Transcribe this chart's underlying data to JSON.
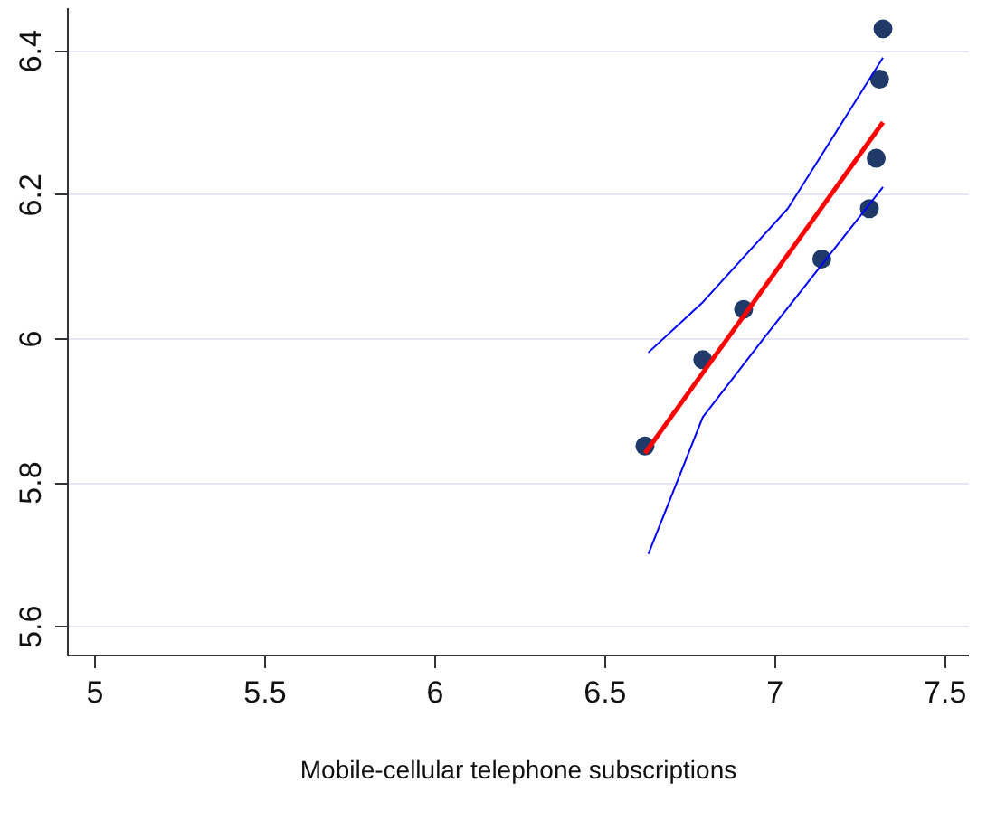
{
  "chart_data": {
    "type": "scatter",
    "xlabel": "Mobile-cellular telephone  subscriptions",
    "xlim": [
      4.92,
      7.57
    ],
    "xticks": [
      5,
      {
        "value": 5.5,
        "label": "5.5"
      },
      6,
      {
        "value": 6.5,
        "label": "6.5"
      },
      7,
      {
        "value": 7.5,
        "label": "7.5"
      }
    ],
    "ylim": [
      5.56,
      6.46
    ],
    "yticks": [
      {
        "value": 5.6,
        "label": "5.6"
      },
      {
        "value": 5.8,
        "label": "5.8"
      },
      6,
      {
        "value": 6.2,
        "label": "6.2"
      },
      {
        "value": 6.4,
        "label": "6.4"
      }
    ],
    "grid": "y",
    "series": [
      {
        "marker": "circle",
        "color": "#1f3a68",
        "x": [
          6.62,
          6.79,
          6.91,
          7.14,
          7.28,
          7.3,
          7.31,
          7.32
        ],
        "values": [
          5.85,
          5.97,
          6.04,
          6.11,
          6.18,
          6.25,
          6.36,
          6.43
        ]
      },
      {
        "type": "line",
        "color": "#ff0000",
        "x": [
          6.62,
          7.32
        ],
        "values": [
          5.84,
          6.3
        ]
      },
      {
        "type": "line",
        "color": "#0000ff",
        "x": [
          6.63,
          6.79,
          7.04,
          7.32
        ],
        "values": [
          5.98,
          6.05,
          6.18,
          6.39
        ]
      },
      {
        "type": "line",
        "color": "#0000ff",
        "x": [
          6.63,
          6.79,
          6.97,
          7.32
        ],
        "values": [
          5.7,
          5.89,
          6.0,
          6.21
        ]
      }
    ]
  }
}
